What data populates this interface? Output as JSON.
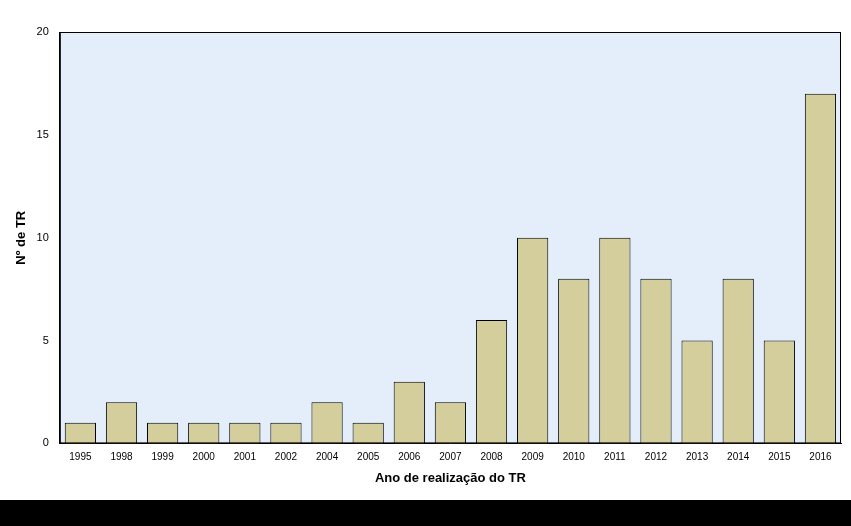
{
  "chart_data": {
    "type": "bar",
    "x_label": "Ano de realização do TR",
    "y_label": "Nº de TR",
    "categories": [
      "1995",
      "1998",
      "1999",
      "2000",
      "2001",
      "2002",
      "2004",
      "2005",
      "2006",
      "2007",
      "2008",
      "2009",
      "2010",
      "2011",
      "2012",
      "2013",
      "2014",
      "2015",
      "2016"
    ],
    "values": [
      1,
      2,
      1,
      1,
      1,
      1,
      2,
      1,
      3,
      2,
      6,
      10,
      8,
      10,
      8,
      5,
      8,
      5,
      17
    ],
    "color": "#d3ce9c",
    "ylim": [
      0,
      20
    ],
    "yticks": [
      0,
      5,
      10,
      15,
      20
    ],
    "grid": false
  }
}
